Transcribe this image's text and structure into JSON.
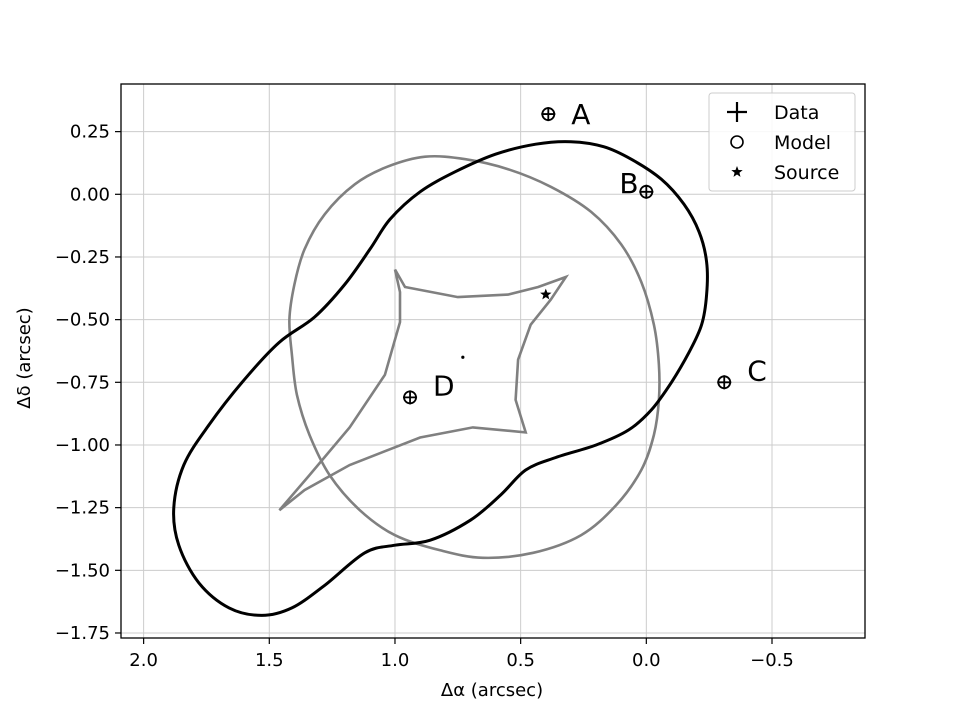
{
  "chart_data": {
    "type": "scatter",
    "xlabel": "Δα (arcsec)",
    "ylabel": "Δδ (arcsec)",
    "xlim": [
      2.09,
      -0.87
    ],
    "ylim": [
      -1.77,
      0.44
    ],
    "x_ticks": [
      2.0,
      1.5,
      1.0,
      0.5,
      0.0,
      -0.5
    ],
    "x_tick_labels": [
      "2.0",
      "1.5",
      "1.0",
      "0.5",
      "0.0",
      "−0.5"
    ],
    "y_ticks": [
      0.25,
      0.0,
      -0.25,
      -0.5,
      -0.75,
      -1.0,
      -1.25,
      -1.5,
      -1.75
    ],
    "y_tick_labels": [
      "0.25",
      "0.00",
      "−0.25",
      "−0.50",
      "−0.75",
      "−1.00",
      "−1.25",
      "−1.50",
      "−1.75"
    ],
    "grid": true,
    "legend_position": "top-right",
    "legend": [
      {
        "label": "Data",
        "marker": "plus"
      },
      {
        "label": "Model",
        "marker": "circle"
      },
      {
        "label": "Source",
        "marker": "star"
      }
    ],
    "images": [
      {
        "label": "A",
        "x": 0.39,
        "y": 0.32
      },
      {
        "label": "B",
        "x": 0.0,
        "y": 0.01
      },
      {
        "label": "C",
        "x": -0.31,
        "y": -0.75
      },
      {
        "label": "D",
        "x": 0.94,
        "y": -0.81
      }
    ],
    "source": {
      "x": 0.4,
      "y": -0.4
    },
    "lens_center": {
      "x": 0.73,
      "y": -0.65
    },
    "colors": {
      "critical": "#000000",
      "caustic": "#808080",
      "grid": "#cccccc"
    },
    "critical_curve": [
      [
        1.12,
        -1.43
      ],
      [
        1.28,
        -1.56
      ],
      [
        1.41,
        -1.65
      ],
      [
        1.53,
        -1.68
      ],
      [
        1.66,
        -1.65
      ],
      [
        1.78,
        -1.55
      ],
      [
        1.86,
        -1.4
      ],
      [
        1.88,
        -1.25
      ],
      [
        1.84,
        -1.08
      ],
      [
        1.74,
        -0.92
      ],
      [
        1.6,
        -0.74
      ],
      [
        1.46,
        -0.59
      ],
      [
        1.32,
        -0.49
      ],
      [
        1.2,
        -0.36
      ],
      [
        1.1,
        -0.22
      ],
      [
        1.02,
        -0.1
      ],
      [
        0.9,
        0.01
      ],
      [
        0.76,
        0.09
      ],
      [
        0.6,
        0.16
      ],
      [
        0.44,
        0.2
      ],
      [
        0.3,
        0.21
      ],
      [
        0.17,
        0.19
      ],
      [
        0.06,
        0.14
      ],
      [
        -0.06,
        0.06
      ],
      [
        -0.15,
        -0.04
      ],
      [
        -0.21,
        -0.15
      ],
      [
        -0.24,
        -0.27
      ],
      [
        -0.24,
        -0.4
      ],
      [
        -0.22,
        -0.52
      ],
      [
        -0.17,
        -0.63
      ],
      [
        -0.1,
        -0.75
      ],
      [
        -0.02,
        -0.86
      ],
      [
        0.07,
        -0.94
      ],
      [
        0.2,
        -1.0
      ],
      [
        0.36,
        -1.05
      ],
      [
        0.48,
        -1.1
      ],
      [
        0.58,
        -1.2
      ],
      [
        0.7,
        -1.3
      ],
      [
        0.86,
        -1.38
      ],
      [
        1.0,
        -1.4
      ],
      [
        1.12,
        -1.43
      ]
    ],
    "caustic_outer": [
      [
        0.65,
        -1.45
      ],
      [
        0.82,
        -1.42
      ],
      [
        1.0,
        -1.36
      ],
      [
        1.14,
        -1.26
      ],
      [
        1.26,
        -1.12
      ],
      [
        1.34,
        -0.96
      ],
      [
        1.39,
        -0.8
      ],
      [
        1.41,
        -0.64
      ],
      [
        1.42,
        -0.5
      ],
      [
        1.4,
        -0.36
      ],
      [
        1.36,
        -0.22
      ],
      [
        1.28,
        -0.08
      ],
      [
        1.16,
        0.04
      ],
      [
        1.03,
        0.11
      ],
      [
        0.88,
        0.15
      ],
      [
        0.72,
        0.14
      ],
      [
        0.55,
        0.1
      ],
      [
        0.38,
        0.03
      ],
      [
        0.22,
        -0.07
      ],
      [
        0.1,
        -0.2
      ],
      [
        0.02,
        -0.35
      ],
      [
        -0.03,
        -0.52
      ],
      [
        -0.05,
        -0.68
      ],
      [
        -0.05,
        -0.82
      ],
      [
        -0.03,
        -0.96
      ],
      [
        0.02,
        -1.1
      ],
      [
        0.12,
        -1.24
      ],
      [
        0.26,
        -1.36
      ],
      [
        0.45,
        -1.43
      ],
      [
        0.65,
        -1.45
      ]
    ],
    "caustic_inner": [
      [
        1.0,
        -0.3
      ],
      [
        0.96,
        -0.37
      ],
      [
        0.75,
        -0.41
      ],
      [
        0.55,
        -0.4
      ],
      [
        0.43,
        -0.37
      ],
      [
        0.32,
        -0.33
      ],
      [
        0.38,
        -0.42
      ],
      [
        0.46,
        -0.52
      ],
      [
        0.51,
        -0.66
      ],
      [
        0.52,
        -0.82
      ],
      [
        0.48,
        -0.95
      ],
      [
        0.69,
        -0.93
      ],
      [
        0.9,
        -0.97
      ],
      [
        1.18,
        -1.08
      ],
      [
        1.36,
        -1.18
      ],
      [
        1.46,
        -1.26
      ],
      [
        1.34,
        -1.12
      ],
      [
        1.18,
        -0.93
      ],
      [
        1.04,
        -0.72
      ],
      [
        0.98,
        -0.51
      ],
      [
        0.98,
        -0.39
      ],
      [
        1.0,
        -0.3
      ]
    ]
  }
}
